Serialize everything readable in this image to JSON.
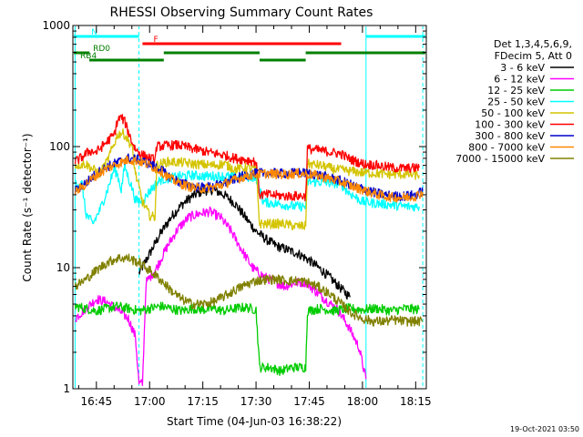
{
  "chart_data": {
    "type": "line",
    "title": "RHESSI Observing Summary Count Rates",
    "xlabel": "Start Time (04-Jun-03 16:38:22)",
    "ylabel": "Count Rate (s⁻¹ detector⁻¹)",
    "yscale": "log",
    "ylim": [
      1,
      1000
    ],
    "xlim_minutes": [
      38.37,
      138.0
    ],
    "x_tick_labels": [
      "16:45",
      "17:00",
      "17:15",
      "17:30",
      "17:45",
      "18:00",
      "18:15"
    ],
    "x_tick_minutes": [
      45,
      60,
      75,
      90,
      105,
      120,
      135
    ],
    "y_tick_labels": [
      "1",
      "10",
      "100",
      "1000"
    ],
    "y_tick_values": [
      1,
      10,
      100,
      1000
    ],
    "legend_position": "right",
    "legend_header": [
      "Det 1,3,4,5,6,9,",
      "FDecim 5, Att 0"
    ],
    "timestamp": "19-Oct-2021 03:50",
    "flags": [
      {
        "label": "N",
        "color": "#00ffff",
        "segments": [
          [
            38.4,
            57
          ],
          [
            121,
            138
          ]
        ]
      },
      {
        "label": "F",
        "color": "#ff0000",
        "segments": [
          [
            58,
            114
          ]
        ]
      },
      {
        "label": "RD0",
        "color": "#008000",
        "segments": [
          [
            38.4,
            43
          ],
          [
            64,
            91
          ],
          [
            104,
            138
          ]
        ]
      },
      {
        "label": "RB4",
        "color": "#008000",
        "segments": [
          [
            43,
            64
          ],
          [
            91,
            104
          ]
        ]
      }
    ],
    "event_lines": {
      "solid": [
        39,
        121
      ],
      "dashed": [
        57,
        137
      ]
    },
    "series": [
      {
        "name": "3 - 6 keV",
        "color": "#000000",
        "points": [
          [
            57,
            9
          ],
          [
            60,
            13
          ],
          [
            63,
            19
          ],
          [
            66,
            26
          ],
          [
            69,
            33
          ],
          [
            72,
            39
          ],
          [
            75,
            43
          ],
          [
            78,
            44
          ],
          [
            81,
            40
          ],
          [
            84,
            34
          ],
          [
            87,
            26
          ],
          [
            90,
            20
          ],
          [
            93,
            17
          ],
          [
            96,
            15
          ],
          [
            99,
            14
          ],
          [
            102,
            13
          ],
          [
            105,
            11.5
          ],
          [
            108,
            9.8
          ],
          [
            111,
            8.2
          ],
          [
            114,
            6.7
          ],
          [
            116.5,
            5.7
          ]
        ]
      },
      {
        "name": "6 - 12 keV",
        "color": "#ff00ff",
        "points": [
          [
            39,
            3.8
          ],
          [
            42,
            4.6
          ],
          [
            45,
            5.5
          ],
          [
            48,
            5.2
          ],
          [
            51,
            4.5
          ],
          [
            54,
            3.8
          ],
          [
            56,
            2.7
          ],
          [
            57,
            1.1
          ],
          [
            58,
            1.1
          ],
          [
            59,
            7.5
          ],
          [
            62,
            10
          ],
          [
            65,
            15
          ],
          [
            68,
            21
          ],
          [
            71,
            26
          ],
          [
            74,
            28
          ],
          [
            77,
            29
          ],
          [
            80,
            26
          ],
          [
            83,
            20
          ],
          [
            86,
            14
          ],
          [
            89,
            10
          ],
          [
            92,
            8.5
          ],
          [
            95,
            7.7
          ],
          [
            98,
            7
          ],
          [
            101,
            7.5
          ],
          [
            104,
            7.6
          ],
          [
            107,
            6.3
          ],
          [
            110,
            5.3
          ],
          [
            113,
            4.5
          ],
          [
            116,
            3.3
          ],
          [
            119,
            2.2
          ],
          [
            121,
            1.2
          ]
        ]
      },
      {
        "name": "12 - 25 keV",
        "color": "#00cc00",
        "points": [
          [
            39,
            4.8
          ],
          [
            42,
            4.6
          ],
          [
            45,
            4.4
          ],
          [
            48,
            4.6
          ],
          [
            51,
            4.8
          ],
          [
            54,
            4.6
          ],
          [
            57,
            4.4
          ],
          [
            60,
            4.6
          ],
          [
            63,
            4.8
          ],
          [
            66,
            4.6
          ],
          [
            69,
            4.4
          ],
          [
            72,
            4.6
          ],
          [
            75,
            4.5
          ],
          [
            78,
            4.6
          ],
          [
            81,
            4.4
          ],
          [
            84,
            4.6
          ],
          [
            87,
            4.7
          ],
          [
            90,
            4.5
          ],
          [
            91,
            1.5
          ],
          [
            94,
            1.5
          ],
          [
            97,
            1.4
          ],
          [
            100,
            1.5
          ],
          [
            104,
            1.5
          ],
          [
            104.5,
            4.4
          ],
          [
            108,
            4.6
          ],
          [
            112,
            4.4
          ],
          [
            116,
            4.6
          ],
          [
            120,
            4.5
          ],
          [
            124,
            4.6
          ],
          [
            128,
            4.4
          ],
          [
            132,
            4.6
          ],
          [
            136,
            4.5
          ]
        ]
      },
      {
        "name": "25 - 50 keV",
        "color": "#00ffff",
        "points": [
          [
            39,
            50
          ],
          [
            41,
            49
          ],
          [
            42,
            28
          ],
          [
            44,
            23
          ],
          [
            46,
            30
          ],
          [
            48,
            43
          ],
          [
            50,
            65
          ],
          [
            51,
            58
          ],
          [
            52,
            44
          ],
          [
            53,
            70
          ],
          [
            54,
            55
          ],
          [
            55,
            46
          ],
          [
            56,
            36
          ],
          [
            58,
            35
          ],
          [
            60,
            43
          ],
          [
            63,
            53
          ],
          [
            66,
            55
          ],
          [
            69,
            57
          ],
          [
            72,
            58
          ],
          [
            75,
            57
          ],
          [
            78,
            57
          ],
          [
            81,
            57
          ],
          [
            84,
            56
          ],
          [
            87,
            56
          ],
          [
            90,
            56
          ],
          [
            92,
            35
          ],
          [
            95,
            34
          ],
          [
            98,
            33
          ],
          [
            101,
            32
          ],
          [
            104,
            32
          ],
          [
            104.5,
            51
          ],
          [
            108,
            51
          ],
          [
            111,
            50
          ],
          [
            114,
            49
          ],
          [
            116,
            42
          ],
          [
            120,
            35
          ],
          [
            124,
            34
          ],
          [
            128,
            33
          ],
          [
            132,
            32
          ],
          [
            136,
            32
          ]
        ]
      },
      {
        "name": "50 - 100 keV",
        "color": "#d4c400",
        "points": [
          [
            39,
            70
          ],
          [
            42,
            72
          ],
          [
            44,
            65
          ],
          [
            46,
            60
          ],
          [
            48,
            75
          ],
          [
            51,
            125
          ],
          [
            52,
            130
          ],
          [
            53,
            125
          ],
          [
            55,
            100
          ],
          [
            56,
            60
          ],
          [
            58,
            35
          ],
          [
            60,
            27
          ],
          [
            61.5,
            26
          ],
          [
            62,
            70
          ],
          [
            65,
            75
          ],
          [
            69,
            74
          ],
          [
            72,
            72
          ],
          [
            75,
            71
          ],
          [
            78,
            70
          ],
          [
            81,
            72
          ],
          [
            84,
            65
          ],
          [
            87,
            67
          ],
          [
            90,
            65
          ],
          [
            91,
            23
          ],
          [
            95,
            23
          ],
          [
            98,
            23
          ],
          [
            101,
            22
          ],
          [
            104,
            22
          ],
          [
            104.5,
            72
          ],
          [
            108,
            70
          ],
          [
            112,
            65
          ],
          [
            116,
            63
          ],
          [
            120,
            61
          ],
          [
            124,
            60
          ],
          [
            128,
            59
          ],
          [
            132,
            59
          ],
          [
            136,
            58
          ]
        ]
      },
      {
        "name": "100 - 300 keV",
        "color": "#ff0000",
        "points": [
          [
            39,
            75
          ],
          [
            41,
            82
          ],
          [
            43,
            92
          ],
          [
            45,
            90
          ],
          [
            48,
            110
          ],
          [
            50,
            125
          ],
          [
            51,
            165
          ],
          [
            52,
            175
          ],
          [
            53,
            160
          ],
          [
            55,
            110
          ],
          [
            56,
            95
          ],
          [
            58,
            85
          ],
          [
            60,
            80
          ],
          [
            61.5,
            78
          ],
          [
            62,
            100
          ],
          [
            65,
            102
          ],
          [
            68,
            103
          ],
          [
            71,
            98
          ],
          [
            75,
            92
          ],
          [
            78,
            88
          ],
          [
            81,
            85
          ],
          [
            84,
            80
          ],
          [
            87,
            78
          ],
          [
            90,
            75
          ],
          [
            91,
            40
          ],
          [
            94,
            40
          ],
          [
            98,
            39
          ],
          [
            101,
            39
          ],
          [
            104,
            39
          ],
          [
            104.5,
            96
          ],
          [
            108,
            93
          ],
          [
            111,
            90
          ],
          [
            114,
            87
          ],
          [
            116,
            80
          ],
          [
            120,
            72
          ],
          [
            124,
            70
          ],
          [
            128,
            67
          ],
          [
            132,
            66
          ],
          [
            136,
            67
          ]
        ]
      },
      {
        "name": "300 - 800 keV",
        "color": "#0000cc",
        "points": [
          [
            39,
            43
          ],
          [
            42,
            50
          ],
          [
            45,
            60
          ],
          [
            48,
            68
          ],
          [
            51,
            74
          ],
          [
            54,
            80
          ],
          [
            57,
            78
          ],
          [
            60,
            72
          ],
          [
            63,
            65
          ],
          [
            66,
            55
          ],
          [
            69,
            50
          ],
          [
            72,
            47
          ],
          [
            75,
            46
          ],
          [
            78,
            47
          ],
          [
            81,
            50
          ],
          [
            84,
            54
          ],
          [
            87,
            58
          ],
          [
            90,
            60
          ],
          [
            93,
            61
          ],
          [
            96,
            60
          ],
          [
            99,
            60
          ],
          [
            102,
            61
          ],
          [
            105,
            60
          ],
          [
            108,
            58
          ],
          [
            111,
            55
          ],
          [
            114,
            52
          ],
          [
            117,
            48
          ],
          [
            120,
            45
          ],
          [
            123,
            42
          ],
          [
            126,
            40
          ],
          [
            129,
            39
          ],
          [
            132,
            39
          ],
          [
            135,
            40
          ],
          [
            137,
            43
          ]
        ]
      },
      {
        "name": "800 - 7000 keV",
        "color": "#ff8800",
        "points": [
          [
            39,
            42
          ],
          [
            42,
            49
          ],
          [
            45,
            58
          ],
          [
            48,
            66
          ],
          [
            51,
            72
          ],
          [
            54,
            78
          ],
          [
            57,
            76
          ],
          [
            60,
            70
          ],
          [
            63,
            63
          ],
          [
            66,
            54
          ],
          [
            69,
            49
          ],
          [
            72,
            46
          ],
          [
            75,
            45
          ],
          [
            78,
            46
          ],
          [
            81,
            49
          ],
          [
            84,
            53
          ],
          [
            87,
            57
          ],
          [
            90,
            59
          ],
          [
            93,
            60
          ],
          [
            96,
            59
          ],
          [
            99,
            59
          ],
          [
            102,
            60
          ],
          [
            105,
            59
          ],
          [
            108,
            57
          ],
          [
            111,
            54
          ],
          [
            114,
            51
          ],
          [
            117,
            47
          ],
          [
            120,
            44
          ],
          [
            123,
            41
          ],
          [
            126,
            39
          ],
          [
            129,
            38
          ],
          [
            132,
            38
          ],
          [
            135,
            39
          ],
          [
            137,
            42
          ]
        ]
      },
      {
        "name": "7000 - 15000 keV",
        "color": "#808000",
        "points": [
          [
            39,
            7
          ],
          [
            42,
            8
          ],
          [
            45,
            9.5
          ],
          [
            48,
            11
          ],
          [
            51,
            12
          ],
          [
            54,
            12
          ],
          [
            57,
            11
          ],
          [
            60,
            9.5
          ],
          [
            63,
            8
          ],
          [
            66,
            6.5
          ],
          [
            69,
            5.5
          ],
          [
            72,
            5
          ],
          [
            75,
            5
          ],
          [
            78,
            5.2
          ],
          [
            81,
            5.8
          ],
          [
            84,
            6.5
          ],
          [
            87,
            7.2
          ],
          [
            90,
            7.8
          ],
          [
            93,
            8
          ],
          [
            96,
            8
          ],
          [
            99,
            7.8
          ],
          [
            102,
            7.8
          ],
          [
            105,
            7.5
          ],
          [
            108,
            6.8
          ],
          [
            111,
            6
          ],
          [
            114,
            5
          ],
          [
            117,
            4.2
          ],
          [
            120,
            3.8
          ],
          [
            123,
            3.6
          ],
          [
            126,
            3.6
          ],
          [
            129,
            3.7
          ],
          [
            132,
            3.6
          ],
          [
            135,
            3.6
          ],
          [
            137,
            3.6
          ]
        ]
      }
    ]
  }
}
